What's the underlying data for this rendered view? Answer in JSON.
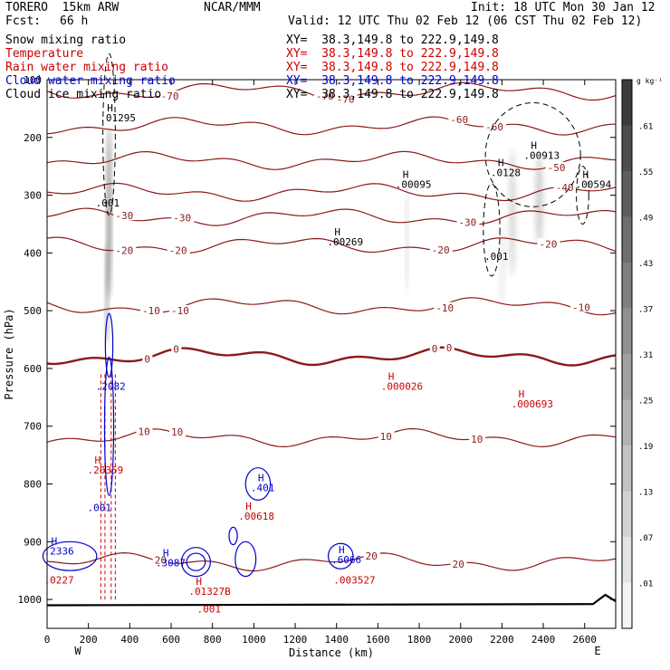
{
  "header": {
    "model": "TORERO  15km ARW",
    "center": "NCAR/MMM",
    "init": "Init: 18 UTC Mon 30 Jan 12",
    "fcst_label": "Fcst:",
    "fcst_value": "66 h",
    "valid": "Valid: 12 UTC Thu 02 Feb 12 (06 CST Thu 02 Feb 12)"
  },
  "fields": [
    {
      "name": "Snow mixing ratio",
      "xy": "XY=  38.3,149.8 to 222.9,149.8",
      "color": "#000000"
    },
    {
      "name": "Temperature",
      "xy": "XY=  38.3,149.8 to 222.9,149.8",
      "color": "#cc0000"
    },
    {
      "name": "Rain water mixing ratio",
      "xy": "XY=  38.3,149.8 to 222.9,149.8",
      "color": "#cc0000"
    },
    {
      "name": "Cloud water mixing ratio",
      "xy": "XY=  38.3,149.8 to 222.9,149.8",
      "color": "#0000cc"
    },
    {
      "name": "Cloud ice mixing ratio",
      "xy": "XY=  38.3,149.8 to 222.9,149.8",
      "color": "#000000"
    }
  ],
  "chart_data": {
    "type": "cross-section contour",
    "xlabel": "Distance (km)",
    "ylabel": "Pressure (hPa)",
    "xlim": [
      0,
      2750
    ],
    "ylim": [
      1050,
      100
    ],
    "x_ticks": [
      "0",
      "200",
      "400",
      "600",
      "800",
      "1000",
      "1200",
      "1400",
      "1600",
      "1800",
      "2000",
      "2200",
      "2400",
      "2600"
    ],
    "x_tick_values": [
      0,
      200,
      400,
      600,
      800,
      1000,
      1200,
      1400,
      1600,
      1800,
      2000,
      2200,
      2400,
      2600
    ],
    "y_ticks": [
      "100",
      "200",
      "300",
      "400",
      "500",
      "600",
      "700",
      "800",
      "900",
      "1000"
    ],
    "y_tick_values": [
      100,
      200,
      300,
      400,
      500,
      600,
      700,
      800,
      900,
      1000
    ],
    "x_end_labels": {
      "left": "W",
      "right": "E"
    },
    "colorbar": {
      "unit": "g kg⁻¹",
      "labels": [
        ".01",
        ".07",
        ".13",
        ".19",
        ".25",
        ".31",
        ".37",
        ".43",
        ".49",
        ".55",
        ".61"
      ],
      "values": [
        0.01,
        0.07,
        0.13,
        0.19,
        0.25,
        0.31,
        0.37,
        0.43,
        0.49,
        0.55,
        0.61
      ]
    },
    "temperature_contours": [
      {
        "label": "-70",
        "level": -70,
        "p": 120,
        "labels": [
          {
            "x": 550,
            "text": "-70"
          },
          {
            "x": 1300,
            "text": "-70"
          },
          {
            "x": 1400,
            "text": "-70"
          }
        ]
      },
      {
        "label": "-60",
        "level": -60,
        "p": 180,
        "labels": [
          {
            "x": 1950,
            "text": "-60"
          },
          {
            "x": 2120,
            "text": "-60"
          }
        ]
      },
      {
        "label": "-50",
        "level": -50,
        "p": 240,
        "labels": [
          {
            "x": 2420,
            "text": "-50"
          }
        ]
      },
      {
        "label": "-40",
        "level": -40,
        "p": 295,
        "labels": [
          {
            "x": 2460,
            "text": "-40"
          }
        ]
      },
      {
        "label": "-30",
        "level": -30,
        "p": 338,
        "labels": [
          {
            "x": 330,
            "text": "-30"
          },
          {
            "x": 610,
            "text": "-30"
          },
          {
            "x": 1990,
            "text": "-30"
          }
        ]
      },
      {
        "label": "-20",
        "level": -20,
        "p": 387,
        "labels": [
          {
            "x": 330,
            "text": "-20"
          },
          {
            "x": 590,
            "text": "-20"
          },
          {
            "x": 1860,
            "text": "-20"
          },
          {
            "x": 2380,
            "text": "-20"
          }
        ]
      },
      {
        "label": "-10",
        "level": -10,
        "p": 492,
        "labels": [
          {
            "x": 460,
            "text": "-10"
          },
          {
            "x": 600,
            "text": "-10"
          },
          {
            "x": 1880,
            "text": "-10"
          },
          {
            "x": 2540,
            "text": "-10"
          }
        ]
      },
      {
        "label": "0",
        "level": 0,
        "p": 579,
        "labels": [
          {
            "x": 470,
            "text": "0"
          },
          {
            "x": 610,
            "text": "0"
          },
          {
            "x": 1860,
            "text": "0"
          },
          {
            "x": 1930,
            "text": "0"
          }
        ]
      },
      {
        "label": "10",
        "level": 10,
        "p": 720,
        "labels": [
          {
            "x": 440,
            "text": "10"
          },
          {
            "x": 600,
            "text": "10"
          },
          {
            "x": 1610,
            "text": "10"
          },
          {
            "x": 2050,
            "text": "10"
          }
        ]
      },
      {
        "label": "20",
        "level": 20,
        "p": 935,
        "labels": [
          {
            "x": 520,
            "text": "20"
          },
          {
            "x": 1540,
            "text": "20"
          },
          {
            "x": 1960,
            "text": "20"
          }
        ]
      }
    ],
    "maxima_labels": [
      {
        "x": 290,
        "p": 155,
        "marker": "H",
        "value": ".01295",
        "field": "Snow mixing ratio"
      },
      {
        "x": 270,
        "p": 302,
        "marker": "",
        "value": ".001",
        "field": "Snow mixing ratio"
      },
      {
        "x": 1390,
        "p": 370,
        "marker": "H",
        "value": ".00269",
        "field": "Snow mixing ratio"
      },
      {
        "x": 1720,
        "p": 270,
        "marker": "H",
        "value": ".00095",
        "field": "Snow mixing ratio"
      },
      {
        "x": 2180,
        "p": 250,
        "marker": "H",
        "value": ".0128",
        "field": "Snow mixing ratio"
      },
      {
        "x": 2340,
        "p": 220,
        "marker": "H",
        "value": ".00913",
        "field": "Snow mixing ratio"
      },
      {
        "x": 2590,
        "p": 270,
        "marker": "H",
        "value": ".00594",
        "field": "Snow mixing ratio"
      },
      {
        "x": 2150,
        "p": 395,
        "marker": "",
        "value": ".001",
        "field": "Snow mixing ratio"
      },
      {
        "x": 1650,
        "p": 620,
        "marker": "H",
        "value": ".000026",
        "field": "Rain water mixing ratio"
      },
      {
        "x": 2280,
        "p": 650,
        "marker": "H",
        "value": ".000693",
        "field": "Rain water mixing ratio"
      },
      {
        "x": 270,
        "p": 620,
        "marker": "",
        "value": ".2082",
        "field": "Cloud water mixing ratio"
      },
      {
        "x": 230,
        "p": 765,
        "marker": "H",
        "value": ".20359",
        "field": "Rain water mixing ratio"
      },
      {
        "x": 230,
        "p": 830,
        "marker": "",
        "value": ".001",
        "field": "Cloud water mixing ratio"
      },
      {
        "x": 1020,
        "p": 795,
        "marker": "H",
        "value": ".401",
        "field": "Cloud water mixing ratio"
      },
      {
        "x": 960,
        "p": 845,
        "marker": "H",
        "value": ".00618",
        "field": "Rain water mixing ratio"
      },
      {
        "x": 20,
        "p": 905,
        "marker": "H",
        "value": ".2336",
        "field": "Cloud water mixing ratio"
      },
      {
        "x": 20,
        "p": 955,
        "marker": "",
        "value": ".0227",
        "field": "Rain water mixing ratio"
      },
      {
        "x": 560,
        "p": 925,
        "marker": "H",
        "value": ".3087",
        "field": "Cloud water mixing ratio"
      },
      {
        "x": 720,
        "p": 975,
        "marker": "H",
        "value": ".01327B",
        "field": "Rain water mixing ratio"
      },
      {
        "x": 760,
        "p": 1005,
        "marker": "",
        "value": ".001",
        "field": "Rain water mixing ratio"
      },
      {
        "x": 1410,
        "p": 920,
        "marker": "H",
        "value": ".6066",
        "field": "Cloud water mixing ratio"
      },
      {
        "x": 1420,
        "p": 955,
        "marker": "",
        "value": ".003527",
        "field": "Rain water mixing ratio"
      }
    ]
  }
}
